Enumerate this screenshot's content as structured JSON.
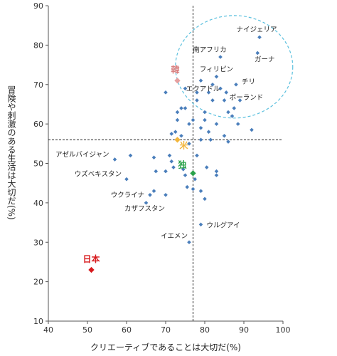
{
  "chart_data": {
    "type": "scatter",
    "xlabel": "クリエーティブであることは大切だ(%)",
    "ylabel": "冒険や刺激のある生活は大切だ(%)",
    "xlim": [
      40,
      100
    ],
    "ylim": [
      10,
      90
    ],
    "xticks": [
      40,
      50,
      60,
      70,
      80,
      90,
      100
    ],
    "yticks": [
      10,
      20,
      30,
      40,
      50,
      60,
      70,
      80,
      90
    ],
    "reference_lines": {
      "x": 77,
      "y": 56
    },
    "cluster_ellipse": {
      "cx": 87.5,
      "cy": 74.5,
      "rx": 15,
      "ry": 13
    },
    "colors": {
      "default": "#4a7ebb",
      "japan": "#d7191c",
      "korea": "#e6a0a0",
      "usa": "#f2b63c",
      "germany": "#2aa24a",
      "ellipse": "#5bc0de"
    },
    "highlighted": [
      {
        "label": "日本",
        "x": 51,
        "y": 23,
        "color": "#d7191c",
        "label_color": "#d7191c"
      },
      {
        "label": "韓",
        "x": 73,
        "y": 71,
        "color": "#e6a0a0",
        "label_color": "#d98080"
      },
      {
        "label": "米",
        "x": 73,
        "y": 56,
        "color": "#f2b63c",
        "label_color": "#f2b63c"
      },
      {
        "label": "独",
        "x": 77,
        "y": 47.5,
        "color": "#2aa24a",
        "label_color": "#2aa24a"
      }
    ],
    "labeled_points": [
      {
        "label": "ナイジェリア",
        "x": 94,
        "y": 82
      },
      {
        "label": "南アフリカ",
        "x": 84,
        "y": 77
      },
      {
        "label": "ガーナ",
        "x": 93.5,
        "y": 78
      },
      {
        "label": "フィリピン",
        "x": 83,
        "y": 72
      },
      {
        "label": "チリ",
        "x": 88,
        "y": 70
      },
      {
        "label": "エクアドル",
        "x": 81,
        "y": 68
      },
      {
        "label": "ポーランド",
        "x": 89,
        "y": 66
      },
      {
        "label": "アゼルバイジャン",
        "x": 57,
        "y": 51
      },
      {
        "label": "ウズベキスタン",
        "x": 60,
        "y": 46
      },
      {
        "label": "ウクライナ",
        "x": 66,
        "y": 42
      },
      {
        "label": "カザフスタン",
        "x": 65,
        "y": 40
      },
      {
        "label": "ウルグアイ",
        "x": 79,
        "y": 34.5
      },
      {
        "label": "イエメン",
        "x": 76,
        "y": 30
      }
    ],
    "points": [
      {
        "x": 61,
        "y": 52
      },
      {
        "x": 67,
        "y": 51.5
      },
      {
        "x": 67.5,
        "y": 48
      },
      {
        "x": 70,
        "y": 48
      },
      {
        "x": 71,
        "y": 52
      },
      {
        "x": 71.5,
        "y": 50.5
      },
      {
        "x": 72,
        "y": 49
      },
      {
        "x": 67,
        "y": 43
      },
      {
        "x": 70,
        "y": 42
      },
      {
        "x": 75,
        "y": 47
      },
      {
        "x": 75.5,
        "y": 44
      },
      {
        "x": 77,
        "y": 43.5
      },
      {
        "x": 79,
        "y": 43
      },
      {
        "x": 80,
        "y": 41
      },
      {
        "x": 80.5,
        "y": 49
      },
      {
        "x": 83,
        "y": 47
      },
      {
        "x": 83,
        "y": 48
      },
      {
        "x": 78,
        "y": 52
      },
      {
        "x": 76,
        "y": 55
      },
      {
        "x": 74,
        "y": 57
      },
      {
        "x": 71.5,
        "y": 57.5
      },
      {
        "x": 72.5,
        "y": 58
      },
      {
        "x": 73,
        "y": 61
      },
      {
        "x": 74,
        "y": 64
      },
      {
        "x": 75,
        "y": 64
      },
      {
        "x": 73,
        "y": 63
      },
      {
        "x": 76,
        "y": 60
      },
      {
        "x": 77,
        "y": 61
      },
      {
        "x": 79,
        "y": 59
      },
      {
        "x": 80,
        "y": 61
      },
      {
        "x": 80,
        "y": 63
      },
      {
        "x": 78,
        "y": 66
      },
      {
        "x": 78,
        "y": 68
      },
      {
        "x": 81,
        "y": 58
      },
      {
        "x": 81.5,
        "y": 56
      },
      {
        "x": 79,
        "y": 56
      },
      {
        "x": 83,
        "y": 60
      },
      {
        "x": 85,
        "y": 57
      },
      {
        "x": 86,
        "y": 55.5
      },
      {
        "x": 87,
        "y": 62
      },
      {
        "x": 87.5,
        "y": 64
      },
      {
        "x": 86,
        "y": 63
      },
      {
        "x": 85,
        "y": 66
      },
      {
        "x": 85.5,
        "y": 68
      },
      {
        "x": 82,
        "y": 70
      },
      {
        "x": 84,
        "y": 69
      },
      {
        "x": 79,
        "y": 71
      },
      {
        "x": 75,
        "y": 69
      },
      {
        "x": 70,
        "y": 68
      },
      {
        "x": 92,
        "y": 58.5
      },
      {
        "x": 88.5,
        "y": 60
      },
      {
        "x": 82,
        "y": 66
      },
      {
        "x": 74.5,
        "y": 48.5
      },
      {
        "x": 77.5,
        "y": 46
      }
    ]
  }
}
